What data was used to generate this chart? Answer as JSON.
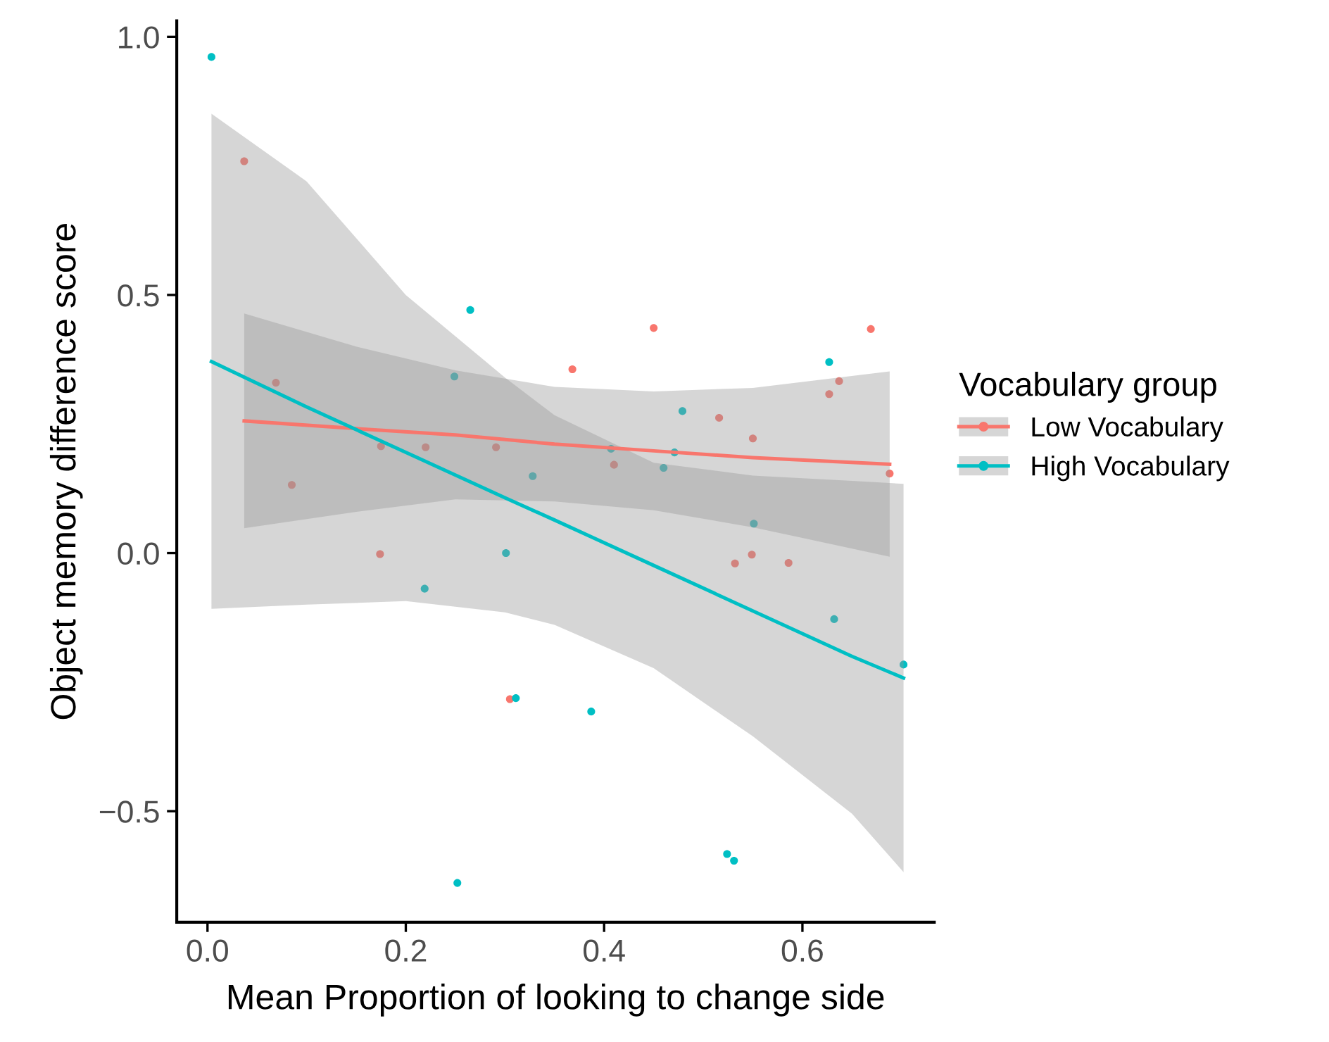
{
  "chart_data": {
    "type": "scatter",
    "xlabel": "Mean Proportion of looking to change side",
    "ylabel": "Object memory difference score",
    "legend_title": "Vocabulary group",
    "legend": "right",
    "grid": false,
    "xlim": [
      -0.031,
      0.733
    ],
    "ylim": [
      -0.715,
      1.031
    ],
    "xticks": [
      {
        "value": 0.0,
        "label": "0.0"
      },
      {
        "value": 0.2,
        "label": "0.2"
      },
      {
        "value": 0.4,
        "label": "0.4"
      },
      {
        "value": 0.6,
        "label": "0.6"
      }
    ],
    "yticks": [
      {
        "value": -0.5,
        "label": "−0.5"
      },
      {
        "value": 0.0,
        "label": "0.0"
      },
      {
        "value": 0.5,
        "label": "0.5"
      },
      {
        "value": 1.0,
        "label": "1.0"
      }
    ],
    "series": [
      {
        "marker": "circle",
        "name": "Low Vocabulary",
        "color": "#f8766d",
        "x": [
          0.037,
          0.069,
          0.085,
          0.174,
          0.175,
          0.22,
          0.291,
          0.305,
          0.368,
          0.41,
          0.45,
          0.516,
          0.532,
          0.549,
          0.55,
          0.586,
          0.627,
          0.637,
          0.669,
          0.688
        ],
        "values": [
          0.759,
          0.33,
          0.132,
          -0.002,
          0.207,
          0.205,
          0.205,
          -0.283,
          0.356,
          0.171,
          0.436,
          0.262,
          -0.02,
          -0.003,
          0.222,
          -0.019,
          0.308,
          0.333,
          0.434,
          0.154
        ]
      },
      {
        "marker": "circle",
        "name": "High Vocabulary",
        "color": "#00bfc4",
        "x": [
          0.004,
          0.219,
          0.249,
          0.252,
          0.265,
          0.301,
          0.311,
          0.328,
          0.387,
          0.407,
          0.46,
          0.471,
          0.479,
          0.524,
          0.531,
          0.551,
          0.627,
          0.632,
          0.702
        ],
        "values": [
          0.961,
          -0.069,
          0.342,
          -0.639,
          0.471,
          0.0,
          -0.281,
          0.149,
          -0.307,
          0.202,
          0.165,
          0.195,
          0.275,
          -0.583,
          -0.596,
          0.057,
          0.37,
          -0.128,
          -0.216
        ]
      },
      {
        "type": "line",
        "marker": "none",
        "color": "#f8766d",
        "x": [
          0.037,
          0.15,
          0.25,
          0.35,
          0.45,
          0.55,
          0.688
        ],
        "values": [
          0.256,
          0.241,
          0.229,
          0.211,
          0.198,
          0.185,
          0.172
        ],
        "lower": [
          0.048,
          0.08,
          0.104,
          0.1,
          0.083,
          0.05,
          -0.007
        ],
        "upper": [
          0.464,
          0.4,
          0.354,
          0.322,
          0.313,
          0.32,
          0.352
        ]
      },
      {
        "type": "line",
        "marker": "none",
        "color": "#00bfc4",
        "x": [
          0.004,
          0.1,
          0.2,
          0.3,
          0.35,
          0.45,
          0.55,
          0.65,
          0.702
        ],
        "values": [
          0.371,
          0.283,
          0.195,
          0.107,
          0.064,
          -0.024,
          -0.112,
          -0.2,
          -0.242
        ],
        "lower": [
          -0.108,
          -0.1,
          -0.093,
          -0.115,
          -0.139,
          -0.223,
          -0.355,
          -0.505,
          -0.618
        ],
        "upper": [
          0.851,
          0.72,
          0.5,
          0.34,
          0.267,
          0.175,
          0.15,
          0.14,
          0.134
        ]
      }
    ]
  }
}
